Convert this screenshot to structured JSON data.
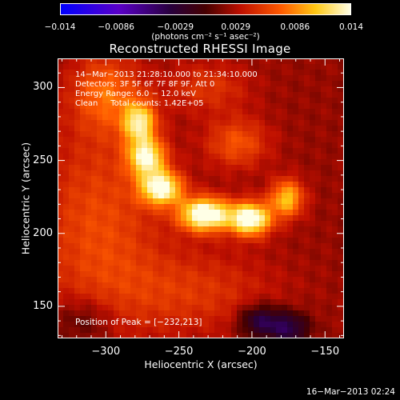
{
  "chart_data": {
    "type": "heatmap",
    "title": "Reconstructed RHESSI Image",
    "xlabel": "Heliocentric X (arcsec)",
    "ylabel": "Heliocentric Y (arcsec)",
    "xlim": [
      -333,
      -137
    ],
    "ylim": [
      128,
      320
    ],
    "x_ticks": [
      "−300",
      "−250",
      "−200",
      "−150"
    ],
    "x_tick_values": [
      -300,
      -250,
      -200,
      -150
    ],
    "y_ticks": [
      "150",
      "200",
      "250",
      "300"
    ],
    "y_tick_values": [
      150,
      200,
      250,
      300
    ],
    "colorbar": {
      "min": -0.014,
      "max": 0.014,
      "tick_labels": [
        "−0.014",
        "−0.0086",
        "−0.0029",
        "0.0029",
        "0.0086",
        "0.014"
      ],
      "tick_values": [
        -0.014,
        -0.0086,
        -0.0029,
        0.0029,
        0.0086,
        0.014
      ],
      "units": "(photons cm⁻² s⁻¹ asec⁻²)"
    },
    "info_lines": [
      "14−Mar−2013 21:28:10.000 to 21:34:10.000",
      "Detectors: 3F 5F 6F 7F 8F 9F, Att 0",
      "Energy Range: 6.0 − 12.0 keV",
      "Clean     Total counts: 1.42E+05"
    ],
    "peak_label": "Position of Peak = [−232,213]",
    "peak_position": [
      -232,
      213
    ],
    "sources": [
      {
        "x": -277,
        "y": 276,
        "sx": 8,
        "sy": 10,
        "amp": 0.0095
      },
      {
        "x": -272,
        "y": 252,
        "sx": 9,
        "sy": 9,
        "amp": 0.0105
      },
      {
        "x": -262,
        "y": 231,
        "sx": 10,
        "sy": 8,
        "amp": 0.012
      },
      {
        "x": -232,
        "y": 213,
        "sx": 12,
        "sy": 8,
        "amp": 0.014
      },
      {
        "x": -201,
        "y": 210,
        "sx": 10,
        "sy": 8,
        "amp": 0.0132
      },
      {
        "x": -176,
        "y": 224,
        "sx": 8,
        "sy": 9,
        "amp": 0.0085
      },
      {
        "x": -305,
        "y": 205,
        "sx": 30,
        "sy": 50,
        "amp": 0.004
      },
      {
        "x": -210,
        "y": 262,
        "sx": 15,
        "sy": 12,
        "amp": 0.0045
      },
      {
        "x": -300,
        "y": 296,
        "sx": 16,
        "sy": 18,
        "amp": 0.005
      },
      {
        "x": -230,
        "y": 300,
        "sx": 20,
        "sy": 12,
        "amp": 0.003
      },
      {
        "x": -240,
        "y": 160,
        "sx": 40,
        "sy": 20,
        "amp": 0.003
      },
      {
        "x": -195,
        "y": 140,
        "sx": 10,
        "sy": 8,
        "amp": -0.006
      },
      {
        "x": -175,
        "y": 135,
        "sx": 10,
        "sy": 8,
        "amp": -0.006
      },
      {
        "x": -315,
        "y": 140,
        "sx": 15,
        "sy": 12,
        "amp": -0.003
      }
    ],
    "background": 0.0022
  },
  "timestamp": "16−Mar−2013 02:24"
}
